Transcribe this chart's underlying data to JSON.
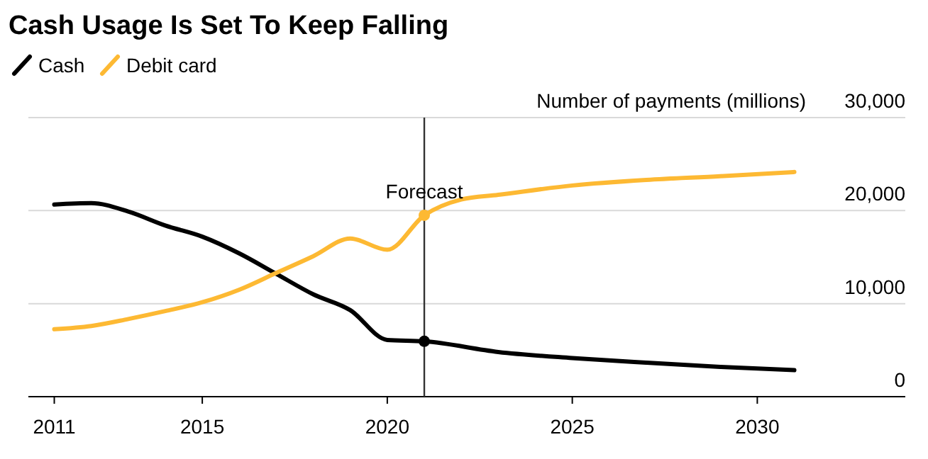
{
  "chart_data": {
    "type": "line",
    "title": "Cash Usage Is Set To Keep Falling",
    "ylabel": "Number of payments (millions)",
    "series": [
      {
        "name": "Cash",
        "color": "#000000",
        "x": [
          2011,
          2012,
          2013,
          2014,
          2015,
          2016,
          2017,
          2018,
          2019,
          2020,
          2021,
          2023,
          2025,
          2027,
          2029,
          2031
        ],
        "values": [
          20650,
          20800,
          19900,
          18400,
          17200,
          15400,
          13200,
          11000,
          9300,
          6100,
          5950,
          4800,
          4150,
          3650,
          3200,
          2850
        ]
      },
      {
        "name": "Debit card",
        "color": "#fdb933",
        "x": [
          2011,
          2012,
          2013,
          2014,
          2015,
          2016,
          2017,
          2018,
          2019,
          2020,
          2021,
          2022,
          2023,
          2025,
          2027,
          2029,
          2031
        ],
        "values": [
          7250,
          7600,
          8350,
          9200,
          10150,
          11500,
          13300,
          15100,
          17000,
          15800,
          19500,
          21200,
          21700,
          22700,
          23300,
          23700,
          24150
        ]
      }
    ],
    "xlim": [
      2010.3,
      2034
    ],
    "xticks": [
      2011,
      2015,
      2020,
      2025,
      2030
    ],
    "ylim": [
      0,
      30000
    ],
    "yticks": [
      0,
      {
        "value": 10000,
        "label": "10,000"
      },
      {
        "value": 20000,
        "label": "20,000"
      },
      {
        "value": 30000,
        "label": "30,000"
      }
    ],
    "ref_lines": [
      {
        "axis": "x",
        "value": 2021,
        "label": "Forecast",
        "color": "#333333"
      }
    ],
    "grid": "y",
    "legend": "top left",
    "line_style": "solid"
  }
}
